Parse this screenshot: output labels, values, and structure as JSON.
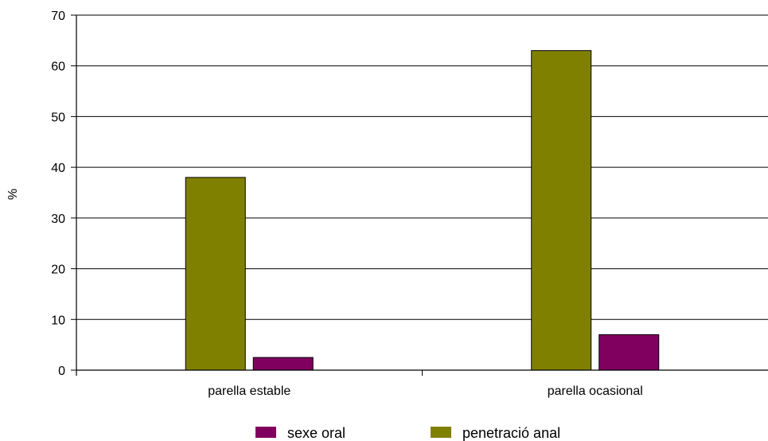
{
  "chart_data": {
    "type": "bar",
    "title": "",
    "xlabel": "",
    "ylabel": "%",
    "ylim": [
      0,
      70
    ],
    "yticks": [
      0,
      10,
      20,
      30,
      40,
      50,
      60,
      70
    ],
    "grid": true,
    "legend_position": "bottom",
    "categories": [
      "parella estable",
      "parella ocasional"
    ],
    "series": [
      {
        "name": "penetració anal",
        "color": "#808000",
        "values": [
          38,
          63
        ]
      },
      {
        "name": "sexe oral",
        "color": "#800060",
        "values": [
          2.5,
          7
        ]
      }
    ],
    "legend_order": [
      "sexe oral",
      "penetració anal"
    ]
  }
}
